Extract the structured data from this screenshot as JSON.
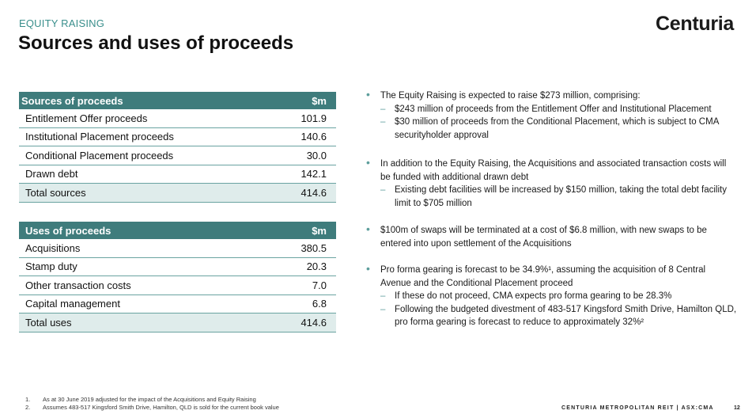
{
  "header": {
    "section_label": "EQUITY RAISING",
    "title": "Sources and uses of proceeds",
    "logo_text": "Centuria"
  },
  "sources_table": {
    "headers": [
      "Sources of proceeds",
      "$m"
    ],
    "rows": [
      {
        "label": "Entitlement Offer proceeds",
        "value": "101.9"
      },
      {
        "label": "Institutional Placement proceeds",
        "value": "140.6"
      },
      {
        "label": "Conditional Placement proceeds",
        "value": "30.0"
      },
      {
        "label": "Drawn debt",
        "value": "142.1"
      }
    ],
    "total": {
      "label": "Total sources",
      "value": "414.6"
    }
  },
  "uses_table": {
    "headers": [
      "Uses of proceeds",
      "$m"
    ],
    "rows": [
      {
        "label": "Acquisitions",
        "value": "380.5"
      },
      {
        "label": "Stamp duty",
        "value": "20.3"
      },
      {
        "label": "Other transaction costs",
        "value": "7.0"
      },
      {
        "label": "Capital management",
        "value": "6.8"
      }
    ],
    "total": {
      "label": "Total uses",
      "value": "414.6"
    }
  },
  "bullets": [
    {
      "text": "The Equity Raising is expected to raise $273 million, comprising:",
      "subs": [
        "$243 million of proceeds from the Entitlement Offer and Institutional Placement",
        "$30 million of proceeds from the Conditional Placement, which is subject to CMA securityholder approval"
      ]
    },
    {
      "text": "In addition to the Equity Raising, the Acquisitions and associated transaction costs will be funded with additional drawn debt",
      "subs": [
        "Existing debt facilities will be increased by $150 million, taking the total debt facility limit to $705 million"
      ]
    },
    {
      "text": "$100m of swaps will be terminated at a cost of $6.8 million, with new swaps to be entered into upon settlement of the Acquisitions",
      "subs": []
    },
    {
      "text": "Pro forma gearing is forecast to be 34.9%¹, assuming the acquisition of 8 Central Avenue and the Conditional Placement proceed",
      "subs": [
        "If these do not proceed, CMA expects pro forma gearing to be 28.3%",
        "Following the budgeted divestment of 483-517 Kingsford Smith Drive, Hamilton QLD, pro forma gearing is forecast to reduce to approximately 32%²"
      ]
    }
  ],
  "footnotes": [
    {
      "num": "1.",
      "text": "As at 30 June 2019 adjusted for the impact of the Acquisitions and Equity Raising"
    },
    {
      "num": "2.",
      "text": "Assumes 483-517 Kingsford Smith Drive, Hamilton, QLD is sold for the current book value"
    }
  ],
  "footer": {
    "brand": "CENTURIA METROPOLITAN REIT  |  ASX:CMA",
    "page_number": "12"
  },
  "colors": {
    "accent": "#3f7c7c",
    "total_row_bg": "#dfeceb",
    "section_label": "#3a8f8c"
  }
}
